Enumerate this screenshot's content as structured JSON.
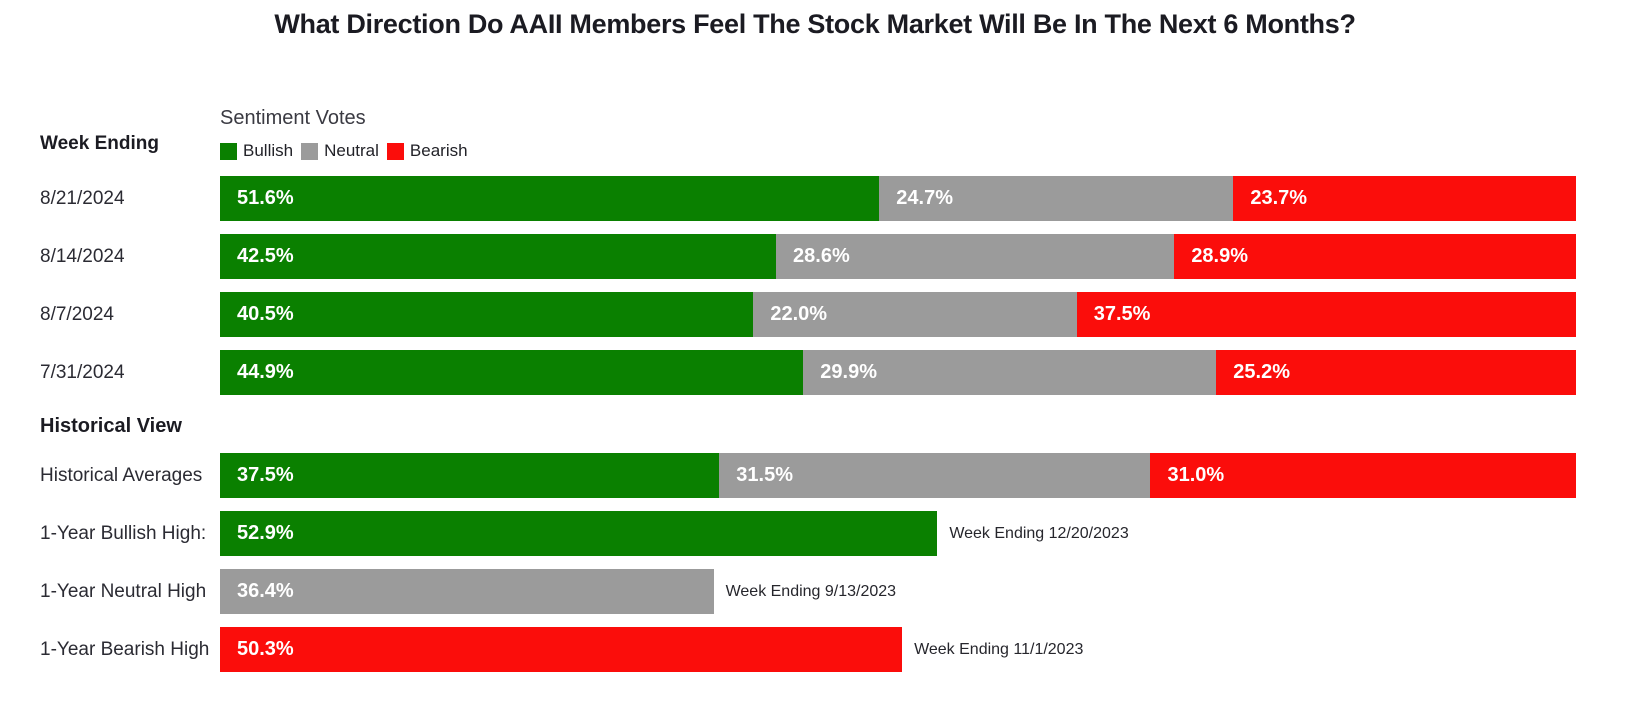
{
  "title": "What Direction Do AAII Members Feel The Stock Market Will Be In The Next 6 Months?",
  "left_column": {
    "week_ending_header": "Week Ending",
    "historical_header": "Historical View"
  },
  "legend": {
    "title": "Sentiment Votes",
    "items": [
      {
        "label": "Bullish",
        "color": "#0a8000"
      },
      {
        "label": "Neutral",
        "color": "#9b9b9b"
      },
      {
        "label": "Bearish",
        "color": "#fb0d0b"
      }
    ]
  },
  "colors": {
    "bullish": "#0a8000",
    "neutral": "#9b9b9b",
    "bearish": "#fb0d0b",
    "bar_value_text": "#ffffff",
    "label_text": "#2b2b33",
    "title_text": "#1b1b22"
  },
  "chart_data": {
    "type": "bar",
    "orientation": "horizontal",
    "stacked": true,
    "unit": "%",
    "xlim": [
      0,
      100
    ],
    "grid": false,
    "legend_position": "top-left",
    "series_order": [
      "Bullish",
      "Neutral",
      "Bearish"
    ],
    "series_colors": {
      "Bullish": "#0a8000",
      "Neutral": "#9b9b9b",
      "Bearish": "#fb0d0b"
    },
    "weekly_rows": [
      {
        "label": "8/21/2024",
        "values": {
          "Bullish": 51.6,
          "Neutral": 24.7,
          "Bearish": 23.7
        }
      },
      {
        "label": "8/14/2024",
        "values": {
          "Bullish": 42.5,
          "Neutral": 28.6,
          "Bearish": 28.9
        }
      },
      {
        "label": "8/7/2024",
        "values": {
          "Bullish": 40.5,
          "Neutral": 22.0,
          "Bearish": 37.5
        }
      },
      {
        "label": "7/31/2024",
        "values": {
          "Bullish": 44.9,
          "Neutral": 29.9,
          "Bearish": 25.2
        }
      }
    ],
    "historical_rows": [
      {
        "label": "Historical Averages",
        "kind": "stacked",
        "values": {
          "Bullish": 37.5,
          "Neutral": 31.5,
          "Bearish": 31.0
        }
      },
      {
        "label": "1-Year Bullish High:",
        "kind": "single",
        "series": "Bullish",
        "value": 52.9,
        "annotation": "Week Ending 12/20/2023"
      },
      {
        "label": "1-Year Neutral High",
        "kind": "single",
        "series": "Neutral",
        "value": 36.4,
        "annotation": "Week Ending 9/13/2023"
      },
      {
        "label": "1-Year Bearish High",
        "kind": "single",
        "series": "Bearish",
        "value": 50.3,
        "annotation": "Week Ending 11/1/2023"
      }
    ]
  }
}
